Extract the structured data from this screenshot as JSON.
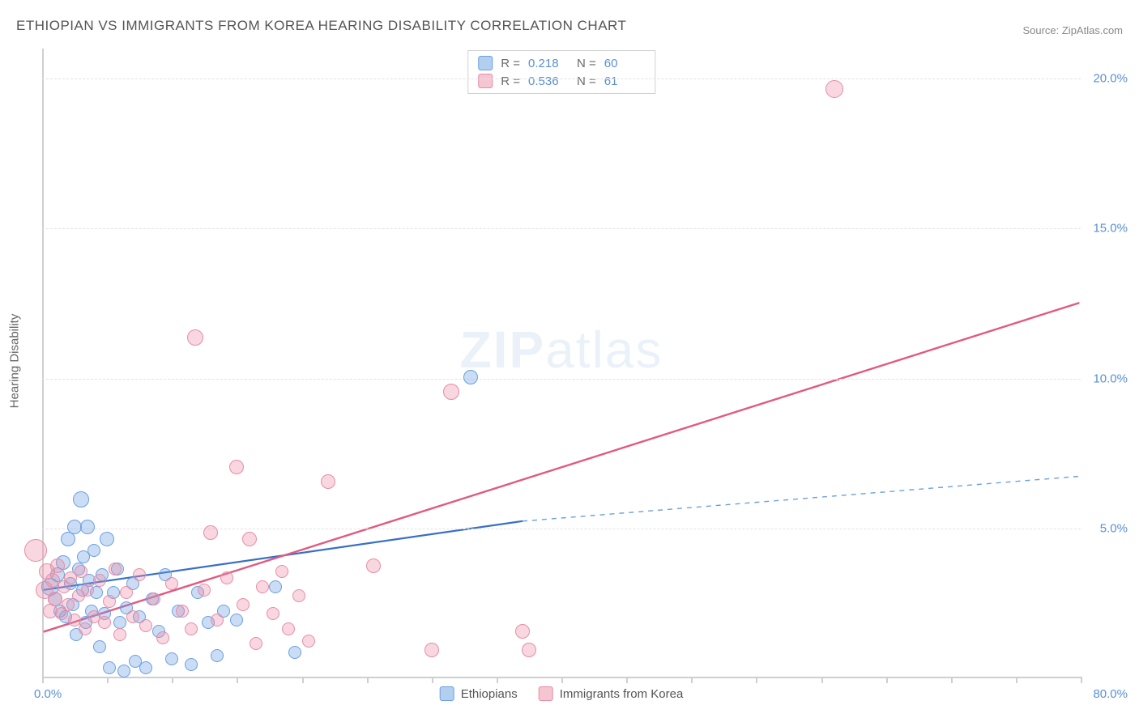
{
  "title": "ETHIOPIAN VS IMMIGRANTS FROM KOREA HEARING DISABILITY CORRELATION CHART",
  "source": "Source: ZipAtlas.com",
  "y_axis_title": "Hearing Disability",
  "watermark_a": "ZIP",
  "watermark_b": "atlas",
  "chart": {
    "type": "scatter",
    "xlim": [
      0,
      80
    ],
    "ylim": [
      0,
      21
    ],
    "x_origin_label": "0.0%",
    "x_max_label": "80.0%",
    "y_ticks": [
      5,
      10,
      15,
      20
    ],
    "y_tick_labels": [
      "5.0%",
      "10.0%",
      "15.0%",
      "20.0%"
    ],
    "x_tick_positions": [
      0,
      5,
      10,
      15,
      20,
      25,
      30,
      35,
      40,
      45,
      50,
      55,
      60,
      65,
      70,
      75,
      80
    ],
    "background_color": "#ffffff",
    "grid_color": "#e3e3e3",
    "axis_color": "#cfcfcf",
    "tick_label_color": "#5a8fd6",
    "tick_label_fontsize": 15,
    "series": [
      {
        "name": "Ethiopians",
        "fill": "rgba(104,159,226,0.35)",
        "stroke": "#6b9fe0",
        "marker_radius": 9,
        "R": "0.218",
        "N": "60",
        "trend": {
          "x1": 0,
          "y1": 2.9,
          "x2": 37,
          "y2": 5.2,
          "color": "#3a6fc4",
          "width": 2.2
        },
        "trend_ext": {
          "x1": 37,
          "y1": 5.2,
          "x2": 80,
          "y2": 6.7,
          "color": "#6b9fe0",
          "width": 1.4,
          "dash": "6 6"
        },
        "points": [
          {
            "x": 0.6,
            "y": 3.0,
            "r": 11
          },
          {
            "x": 1.0,
            "y": 2.6,
            "r": 9
          },
          {
            "x": 1.2,
            "y": 3.4,
            "r": 9
          },
          {
            "x": 1.4,
            "y": 2.2,
            "r": 8
          },
          {
            "x": 1.6,
            "y": 3.8,
            "r": 9
          },
          {
            "x": 1.8,
            "y": 2.0,
            "r": 8
          },
          {
            "x": 2.0,
            "y": 4.6,
            "r": 9
          },
          {
            "x": 2.2,
            "y": 3.1,
            "r": 8
          },
          {
            "x": 2.4,
            "y": 2.4,
            "r": 8
          },
          {
            "x": 2.5,
            "y": 5.0,
            "r": 9
          },
          {
            "x": 2.6,
            "y": 1.4,
            "r": 8
          },
          {
            "x": 2.8,
            "y": 3.6,
            "r": 8
          },
          {
            "x": 3.0,
            "y": 5.9,
            "r": 10
          },
          {
            "x": 3.1,
            "y": 2.9,
            "r": 8
          },
          {
            "x": 3.2,
            "y": 4.0,
            "r": 8
          },
          {
            "x": 3.4,
            "y": 1.8,
            "r": 8
          },
          {
            "x": 3.5,
            "y": 5.0,
            "r": 9
          },
          {
            "x": 3.6,
            "y": 3.2,
            "r": 8
          },
          {
            "x": 3.8,
            "y": 2.2,
            "r": 8
          },
          {
            "x": 4.0,
            "y": 4.2,
            "r": 8
          },
          {
            "x": 4.2,
            "y": 2.8,
            "r": 8
          },
          {
            "x": 4.4,
            "y": 1.0,
            "r": 8
          },
          {
            "x": 4.6,
            "y": 3.4,
            "r": 8
          },
          {
            "x": 4.8,
            "y": 2.1,
            "r": 8
          },
          {
            "x": 5.0,
            "y": 4.6,
            "r": 9
          },
          {
            "x": 5.2,
            "y": 0.3,
            "r": 8
          },
          {
            "x": 5.5,
            "y": 2.8,
            "r": 8
          },
          {
            "x": 5.8,
            "y": 3.6,
            "r": 8
          },
          {
            "x": 6.0,
            "y": 1.8,
            "r": 8
          },
          {
            "x": 6.3,
            "y": 0.2,
            "r": 8
          },
          {
            "x": 6.5,
            "y": 2.3,
            "r": 8
          },
          {
            "x": 7.0,
            "y": 3.1,
            "r": 8
          },
          {
            "x": 7.2,
            "y": 0.5,
            "r": 8
          },
          {
            "x": 7.5,
            "y": 2.0,
            "r": 8
          },
          {
            "x": 8.0,
            "y": 0.3,
            "r": 8
          },
          {
            "x": 8.5,
            "y": 2.6,
            "r": 8
          },
          {
            "x": 9.0,
            "y": 1.5,
            "r": 8
          },
          {
            "x": 9.5,
            "y": 3.4,
            "r": 8
          },
          {
            "x": 10.0,
            "y": 0.6,
            "r": 8
          },
          {
            "x": 10.5,
            "y": 2.2,
            "r": 8
          },
          {
            "x": 11.5,
            "y": 0.4,
            "r": 8
          },
          {
            "x": 12.0,
            "y": 2.8,
            "r": 8
          },
          {
            "x": 12.8,
            "y": 1.8,
            "r": 8
          },
          {
            "x": 13.5,
            "y": 0.7,
            "r": 8
          },
          {
            "x": 14.0,
            "y": 2.2,
            "r": 8
          },
          {
            "x": 15.0,
            "y": 1.9,
            "r": 8
          },
          {
            "x": 18.0,
            "y": 3.0,
            "r": 8
          },
          {
            "x": 19.5,
            "y": 0.8,
            "r": 8
          },
          {
            "x": 33.0,
            "y": 10.0,
            "r": 9
          }
        ]
      },
      {
        "name": "Immigrants from Korea",
        "fill": "rgba(236,140,165,0.35)",
        "stroke": "#e88ca5",
        "marker_radius": 9,
        "R": "0.536",
        "N": "61",
        "trend": {
          "x1": 0,
          "y1": 1.5,
          "x2": 80,
          "y2": 12.5,
          "color": "#e15a80",
          "width": 2.4
        },
        "points": [
          {
            "x": -0.5,
            "y": 4.2,
            "r": 14
          },
          {
            "x": 0.2,
            "y": 2.9,
            "r": 11
          },
          {
            "x": 0.4,
            "y": 3.5,
            "r": 10
          },
          {
            "x": 0.6,
            "y": 2.2,
            "r": 9
          },
          {
            "x": 0.8,
            "y": 3.2,
            "r": 9
          },
          {
            "x": 1.0,
            "y": 2.6,
            "r": 9
          },
          {
            "x": 1.2,
            "y": 3.7,
            "r": 9
          },
          {
            "x": 1.5,
            "y": 2.1,
            "r": 8
          },
          {
            "x": 1.7,
            "y": 3.0,
            "r": 8
          },
          {
            "x": 2.0,
            "y": 2.4,
            "r": 8
          },
          {
            "x": 2.2,
            "y": 3.3,
            "r": 8
          },
          {
            "x": 2.5,
            "y": 1.9,
            "r": 8
          },
          {
            "x": 2.8,
            "y": 2.7,
            "r": 8
          },
          {
            "x": 3.0,
            "y": 3.5,
            "r": 8
          },
          {
            "x": 3.3,
            "y": 1.6,
            "r": 8
          },
          {
            "x": 3.5,
            "y": 2.9,
            "r": 8
          },
          {
            "x": 4.0,
            "y": 2.0,
            "r": 8
          },
          {
            "x": 4.4,
            "y": 3.2,
            "r": 8
          },
          {
            "x": 4.8,
            "y": 1.8,
            "r": 8
          },
          {
            "x": 5.2,
            "y": 2.5,
            "r": 8
          },
          {
            "x": 5.6,
            "y": 3.6,
            "r": 8
          },
          {
            "x": 6.0,
            "y": 1.4,
            "r": 8
          },
          {
            "x": 6.5,
            "y": 2.8,
            "r": 8
          },
          {
            "x": 7.0,
            "y": 2.0,
            "r": 8
          },
          {
            "x": 7.5,
            "y": 3.4,
            "r": 8
          },
          {
            "x": 8.0,
            "y": 1.7,
            "r": 8
          },
          {
            "x": 8.6,
            "y": 2.6,
            "r": 8
          },
          {
            "x": 9.3,
            "y": 1.3,
            "r": 8
          },
          {
            "x": 10.0,
            "y": 3.1,
            "r": 8
          },
          {
            "x": 10.8,
            "y": 2.2,
            "r": 8
          },
          {
            "x": 11.5,
            "y": 1.6,
            "r": 8
          },
          {
            "x": 11.8,
            "y": 11.3,
            "r": 10
          },
          {
            "x": 12.5,
            "y": 2.9,
            "r": 8
          },
          {
            "x": 13.0,
            "y": 4.8,
            "r": 9
          },
          {
            "x": 13.5,
            "y": 1.9,
            "r": 8
          },
          {
            "x": 14.2,
            "y": 3.3,
            "r": 8
          },
          {
            "x": 15.0,
            "y": 7.0,
            "r": 9
          },
          {
            "x": 15.5,
            "y": 2.4,
            "r": 8
          },
          {
            "x": 16.0,
            "y": 4.6,
            "r": 9
          },
          {
            "x": 16.5,
            "y": 1.1,
            "r": 8
          },
          {
            "x": 17.0,
            "y": 3.0,
            "r": 8
          },
          {
            "x": 17.8,
            "y": 2.1,
            "r": 8
          },
          {
            "x": 18.5,
            "y": 3.5,
            "r": 8
          },
          {
            "x": 19.0,
            "y": 1.6,
            "r": 8
          },
          {
            "x": 19.8,
            "y": 2.7,
            "r": 8
          },
          {
            "x": 20.5,
            "y": 1.2,
            "r": 8
          },
          {
            "x": 22.0,
            "y": 6.5,
            "r": 9
          },
          {
            "x": 25.5,
            "y": 3.7,
            "r": 9
          },
          {
            "x": 30.0,
            "y": 0.9,
            "r": 9
          },
          {
            "x": 31.5,
            "y": 9.5,
            "r": 10
          },
          {
            "x": 37.0,
            "y": 1.5,
            "r": 9
          },
          {
            "x": 37.5,
            "y": 0.9,
            "r": 9
          },
          {
            "x": 61.0,
            "y": 19.6,
            "r": 11
          }
        ]
      }
    ]
  },
  "legend_bottom": [
    {
      "swatch_fill": "rgba(104,159,226,0.5)",
      "swatch_stroke": "#6b9fe0",
      "label": "Ethiopians"
    },
    {
      "swatch_fill": "rgba(236,140,165,0.5)",
      "swatch_stroke": "#e88ca5",
      "label": "Immigrants from Korea"
    }
  ]
}
